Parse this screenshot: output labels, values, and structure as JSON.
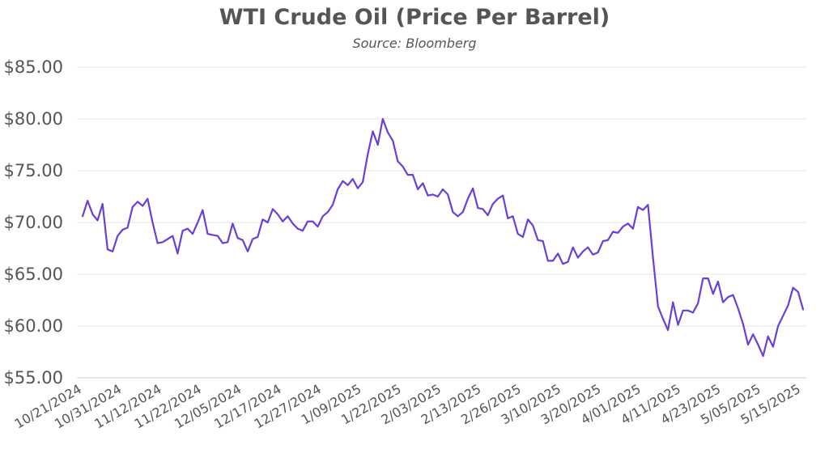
{
  "chart_data": {
    "type": "line",
    "title": "WTI Crude Oil (Price Per Barrel)",
    "subtitle": "Source: Bloomberg",
    "xlabel": "",
    "ylabel": "",
    "ylim": [
      55,
      85
    ],
    "grid": true,
    "legend": "none",
    "line_color": "#6a3fd8",
    "y_ticks": [
      "$55.00",
      "$60.00",
      "$65.00",
      "$70.00",
      "$75.00",
      "$80.00",
      "$85.00"
    ],
    "x_tick_labels": [
      "10/21/2024",
      "10/31/2024",
      "11/12/2024",
      "11/22/2024",
      "12/05/2024",
      "12/17/2024",
      "12/27/2024",
      "1/09/2025",
      "1/22/2025",
      "2/03/2025",
      "2/13/2025",
      "2/26/2025",
      "3/10/2025",
      "3/20/2025",
      "4/01/2025",
      "4/11/2025",
      "4/23/2025",
      "5/05/2025",
      "5/15/2025"
    ],
    "series": [
      {
        "values": [
          70.6,
          72.1,
          70.8,
          70.2,
          71.8,
          67.4,
          67.2,
          68.7,
          69.3,
          69.5,
          71.5,
          72.0,
          71.6,
          72.3,
          70.0,
          68.0,
          68.1,
          68.4,
          68.7,
          67.0,
          69.2,
          69.4,
          68.9,
          70.0,
          71.2,
          68.9,
          68.8,
          68.7,
          68.0,
          68.1,
          69.9,
          68.5,
          68.3,
          67.2,
          68.4,
          68.6,
          70.3,
          70.0,
          71.3,
          70.8,
          70.1,
          70.6,
          69.9,
          69.4,
          69.2,
          70.1,
          70.1,
          69.6,
          70.6,
          71.0,
          71.7,
          73.2,
          74.0,
          73.6,
          74.2,
          73.3,
          73.9,
          76.6,
          78.8,
          77.5,
          80.0,
          78.7,
          77.9,
          75.9,
          75.4,
          74.6,
          74.6,
          73.2,
          73.8,
          72.6,
          72.7,
          72.5,
          73.2,
          72.7,
          71.0,
          70.6,
          71.0,
          72.3,
          73.3,
          71.4,
          71.3,
          70.7,
          71.8,
          72.3,
          72.6,
          70.4,
          70.6,
          68.9,
          68.6,
          70.3,
          69.7,
          68.3,
          68.2,
          66.3,
          66.3,
          67.0,
          66.0,
          66.2,
          67.6,
          66.6,
          67.2,
          67.6,
          66.9,
          67.1,
          68.2,
          68.3,
          69.1,
          69.0,
          69.6,
          69.9,
          69.4,
          71.5,
          71.2,
          71.7,
          66.6,
          61.9,
          60.7,
          59.6,
          62.3,
          60.1,
          61.5,
          61.5,
          61.3,
          62.2,
          64.6,
          64.6,
          63.1,
          64.3,
          62.3,
          62.8,
          63.0,
          61.7,
          60.2,
          58.2,
          59.2,
          58.2,
          57.1,
          59.0,
          58.0,
          60.0,
          61.0,
          62.0,
          63.7,
          63.3,
          61.6
        ]
      }
    ]
  }
}
